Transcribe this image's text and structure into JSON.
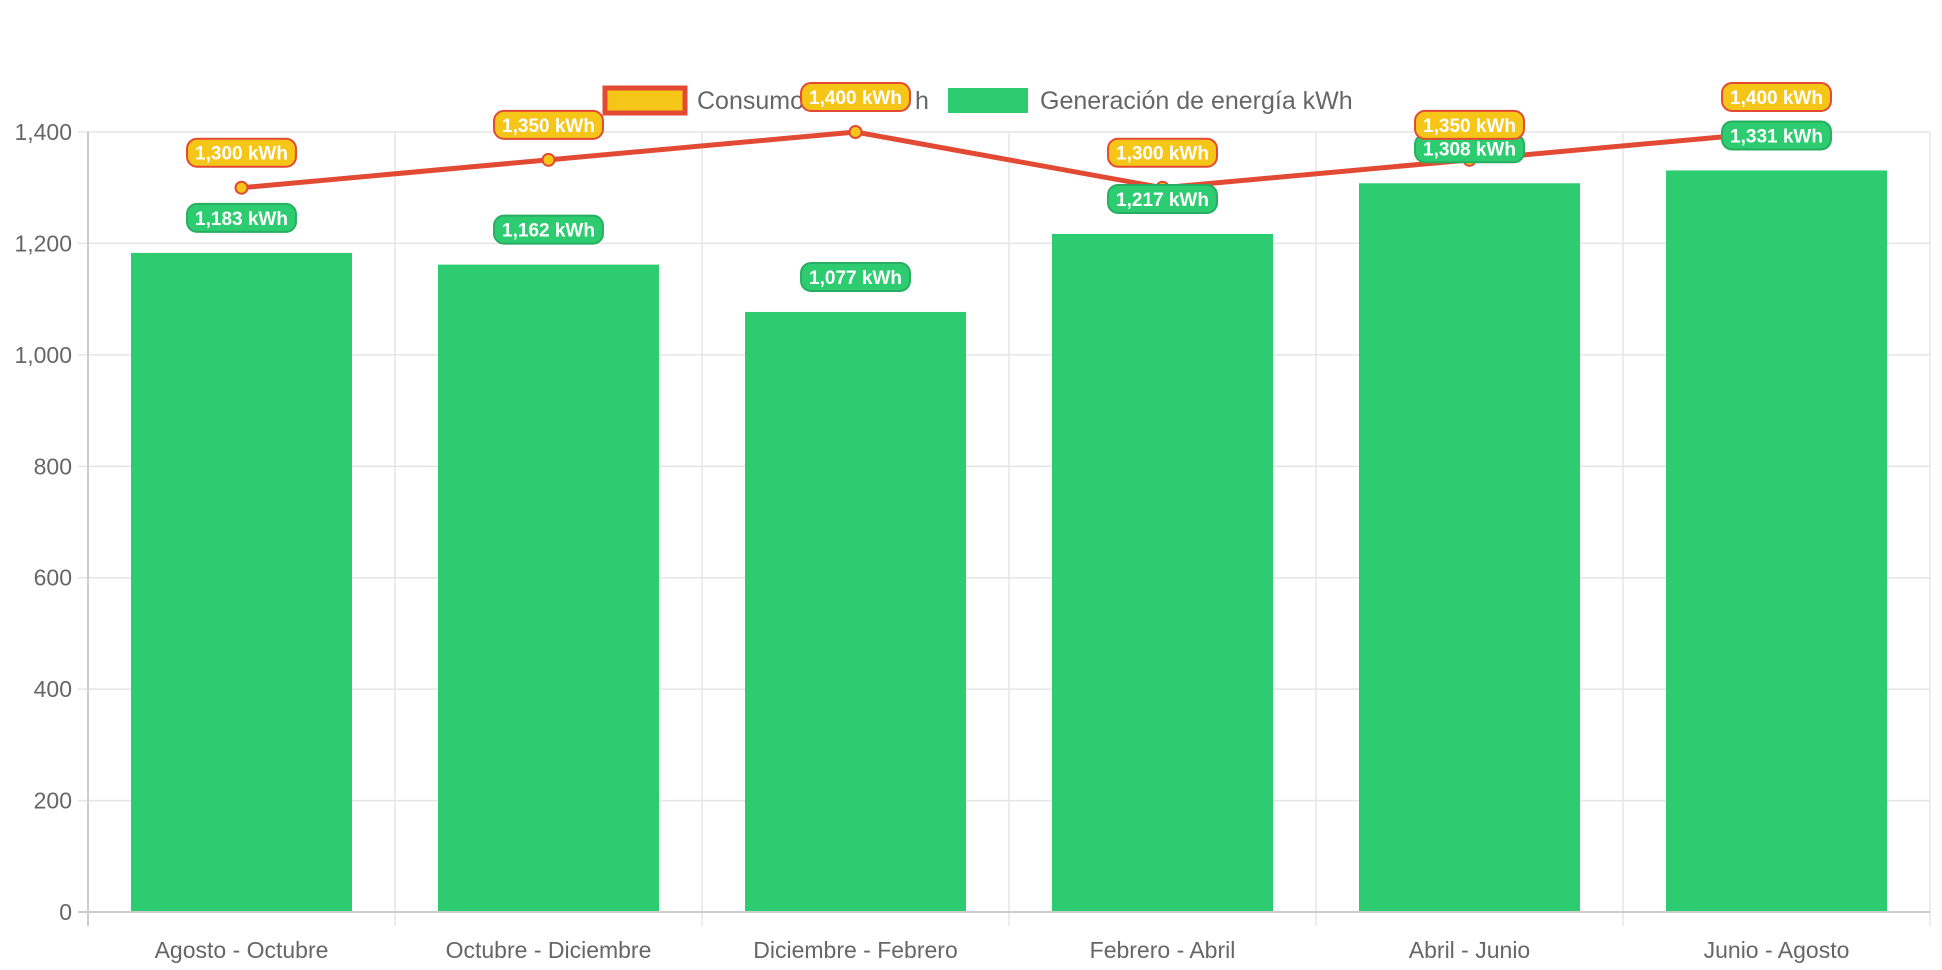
{
  "chart_data": {
    "type": "bar",
    "title": "",
    "xlabel": "",
    "ylabel": "",
    "categories": [
      "Agosto - Octubre",
      "Octubre - Diciembre",
      "Diciembre - Febrero",
      "Febrero - Abril",
      "Abril - Junio",
      "Junio - Agosto"
    ],
    "ylim": [
      0,
      1400
    ],
    "yticks": [
      0,
      200,
      400,
      600,
      800,
      1000,
      1200,
      1400
    ],
    "ytick_labels": [
      "0",
      "200",
      "400",
      "600",
      "800",
      "1,000",
      "1,200",
      "1,400"
    ],
    "grid": true,
    "legend_position": "top-center",
    "series": [
      {
        "name": "Consumo kWh",
        "legend_visible_text": "Consumo",
        "legend_hidden_text": "h",
        "type": "line",
        "values": [
          1300,
          1350,
          1400,
          1300,
          1350,
          1400
        ],
        "labels": [
          "1,300 kWh",
          "1,350 kWh",
          "1,400 kWh",
          "1,300 kWh",
          "1,350 kWh",
          "1,400 kWh"
        ],
        "line_color": "#e24a33",
        "point_color": "#f5c518"
      },
      {
        "name": "Generación de energía kWh",
        "type": "bar",
        "values": [
          1183,
          1162,
          1077,
          1217,
          1308,
          1331
        ],
        "labels": [
          "1,183 kWh",
          "1,162 kWh",
          "1,077 kWh",
          "1,217 kWh",
          "1,308 kWh",
          "1,331 kWh"
        ],
        "color": "#2ecc71"
      }
    ]
  },
  "colors": {
    "grid": "#e5e5e5",
    "axis": "#cccccc",
    "bar": "#2ecc71",
    "bar_label_border": "#27ae60",
    "line": "#e24a33",
    "line_label_bg": "#f5c518"
  }
}
